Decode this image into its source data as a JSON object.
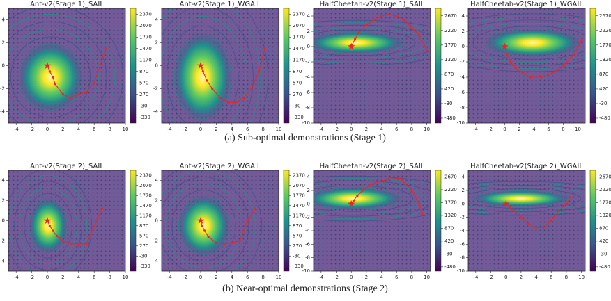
{
  "captions": [
    "(a) Sub-optimal demonstrations (Stage 1)",
    "(b) Near-optimal demonstrations (Stage 2)"
  ],
  "chart_data": [
    {
      "type": "contour",
      "title": "Ant-v2(Stage 1)_SAIL",
      "xlim": [
        -5,
        10
      ],
      "ylim": [
        -5,
        5
      ],
      "xticks": [
        -4,
        -2,
        0,
        2,
        4,
        6,
        8,
        10
      ],
      "yticks": [
        -4,
        -2,
        0,
        2,
        4
      ],
      "clim": [
        -480,
        2520
      ],
      "cticks": [
        -330,
        -30,
        270,
        570,
        870,
        1170,
        1470,
        1770,
        2070,
        2370
      ],
      "color": "#e8262a",
      "x": [
        0,
        0.3,
        0.7,
        1,
        2,
        3,
        4,
        5,
        6,
        7.5
      ],
      "y": [
        0,
        -0.5,
        -1,
        -1.6,
        -2.5,
        -2.8,
        -2.5,
        -2.3,
        -1.5,
        1.5
      ]
    },
    {
      "type": "contour",
      "title": "Ant-v2(Stage 1)_WGAIL",
      "xlim": [
        -5,
        10
      ],
      "ylim": [
        -5,
        5
      ],
      "xticks": [
        -4,
        -2,
        0,
        2,
        4,
        6,
        8,
        10
      ],
      "yticks": [
        -4,
        -2,
        0,
        2,
        4
      ],
      "clim": [
        -480,
        2520
      ],
      "cticks": [
        -330,
        -30,
        270,
        570,
        870,
        1170,
        1470,
        1770,
        2070,
        2370
      ],
      "color": "#e8262a",
      "x": [
        0,
        0.3,
        0.8,
        1.5,
        2.5,
        3.5,
        4.5,
        5.5,
        6.5,
        7.5,
        8.2
      ],
      "y": [
        0,
        -0.5,
        -1.3,
        -2,
        -2.8,
        -3.2,
        -3.2,
        -2.8,
        -2,
        -0.5,
        1.5
      ]
    },
    {
      "type": "contour",
      "title": "HalfCheetah-v2(Stage 1)_SAIL",
      "xlim": [
        -5,
        10.5
      ],
      "ylim": [
        -10,
        5
      ],
      "xticks": [
        -4,
        -2,
        0,
        2,
        4,
        6,
        8,
        10
      ],
      "yticks": [
        -10,
        -8,
        -6,
        -4,
        -2,
        0,
        2,
        4
      ],
      "clim": [
        -630,
        2900
      ],
      "cticks": [
        -480,
        -30,
        420,
        870,
        1320,
        1770,
        2220,
        2670
      ],
      "color": "#e8262a",
      "x": [
        0,
        0.5,
        1,
        2,
        3,
        4,
        5,
        6,
        7,
        8,
        9,
        10
      ],
      "y": [
        0,
        1,
        1.8,
        2.8,
        3.5,
        4,
        4.2,
        4,
        3.5,
        2.5,
        1.5,
        -0.5
      ]
    },
    {
      "type": "contour",
      "title": "HalfCheetah-v2(Stage 1)_WGAIL",
      "xlim": [
        -5,
        11
      ],
      "ylim": [
        -10,
        5
      ],
      "xticks": [
        -4,
        -2,
        0,
        2,
        4,
        6,
        8,
        10
      ],
      "yticks": [
        -10,
        -8,
        -6,
        -4,
        -2,
        0,
        2,
        4
      ],
      "clim": [
        -630,
        2900
      ],
      "cticks": [
        -480,
        -30,
        420,
        870,
        1320,
        1770,
        2220,
        2670
      ],
      "color": "#e8262a",
      "x": [
        0,
        0.3,
        0.8,
        1.5,
        2.5,
        3.5,
        5,
        6.5,
        8,
        9.5,
        10.5
      ],
      "y": [
        0,
        -1,
        -2,
        -2.8,
        -3.5,
        -4,
        -4,
        -3.5,
        -2.5,
        -1,
        0.8
      ]
    },
    {
      "type": "contour",
      "title": "Ant-v2(Stage 2)_SAIL",
      "xlim": [
        -5,
        10
      ],
      "ylim": [
        -5,
        5
      ],
      "xticks": [
        -4,
        -2,
        0,
        2,
        4,
        6,
        8,
        10
      ],
      "yticks": [
        -4,
        -2,
        0,
        2,
        4
      ],
      "clim": [
        -480,
        2520
      ],
      "cticks": [
        -330,
        -30,
        270,
        570,
        870,
        1170,
        1470,
        1770,
        2070,
        2370
      ],
      "color": "#e8262a",
      "x": [
        0,
        0.3,
        0.7,
        1.2,
        2,
        3,
        4,
        5,
        6,
        7
      ],
      "y": [
        0,
        -0.5,
        -1,
        -1.5,
        -2,
        -2.3,
        -2.3,
        -2.3,
        -0.5,
        1.2
      ]
    },
    {
      "type": "contour",
      "title": "Ant-v2(Stage 2)_WGAIL",
      "xlim": [
        -5,
        10
      ],
      "ylim": [
        -5,
        5
      ],
      "xticks": [
        -4,
        -2,
        0,
        2,
        4,
        6,
        8,
        10
      ],
      "yticks": [
        -4,
        -2,
        0,
        2,
        4
      ],
      "clim": [
        -480,
        2520
      ],
      "cticks": [
        -330,
        -30,
        270,
        570,
        870,
        1170,
        1470,
        1770,
        2070,
        2370
      ],
      "color": "#e8262a",
      "x": [
        0,
        0.2,
        0.5,
        1,
        2,
        3,
        4,
        5,
        6,
        7
      ],
      "y": [
        0,
        -0.5,
        -1,
        -1.6,
        -2.2,
        -2.3,
        -2.2,
        -2,
        0,
        1.2
      ]
    },
    {
      "type": "contour",
      "title": "HalfCheetah-v2(Stage 2)_SAIL",
      "xlim": [
        -5,
        10.5
      ],
      "ylim": [
        -10,
        5
      ],
      "xticks": [
        -4,
        -2,
        0,
        2,
        4,
        6,
        8,
        10
      ],
      "yticks": [
        -10,
        -8,
        -6,
        -4,
        -2,
        0,
        2,
        4
      ],
      "clim": [
        -630,
        2900
      ],
      "cticks": [
        -480,
        -30,
        420,
        870,
        1320,
        1770,
        2220,
        2670
      ],
      "color": "#e8262a",
      "x": [
        0,
        0.3,
        0.8,
        1.5,
        2.5,
        3.5,
        5,
        6.5,
        8,
        9,
        9.5
      ],
      "y": [
        0,
        0.5,
        1.2,
        2,
        2.8,
        3.3,
        3.7,
        3.8,
        2,
        0,
        -1.5
      ]
    },
    {
      "type": "contour",
      "title": "HalfCheetah-v2(Stage 2)_WGAIL",
      "xlim": [
        -5,
        10.5
      ],
      "ylim": [
        -10,
        5
      ],
      "xticks": [
        -4,
        -2,
        0,
        2,
        4,
        6,
        8,
        10
      ],
      "yticks": [
        -10,
        -8,
        -6,
        -4,
        -2,
        0,
        2,
        4
      ],
      "clim": [
        -630,
        2900
      ],
      "cticks": [
        -480,
        -30,
        420,
        870,
        1320,
        1770,
        2220,
        2670
      ],
      "color": "#e8262a",
      "x": [
        0,
        0.5,
        1,
        2,
        3,
        4,
        5,
        6,
        7,
        8,
        8.5
      ],
      "y": [
        0,
        -0.5,
        -1,
        -2,
        -3,
        -3.5,
        -3.5,
        -2.5,
        -1,
        0,
        1
      ]
    }
  ]
}
